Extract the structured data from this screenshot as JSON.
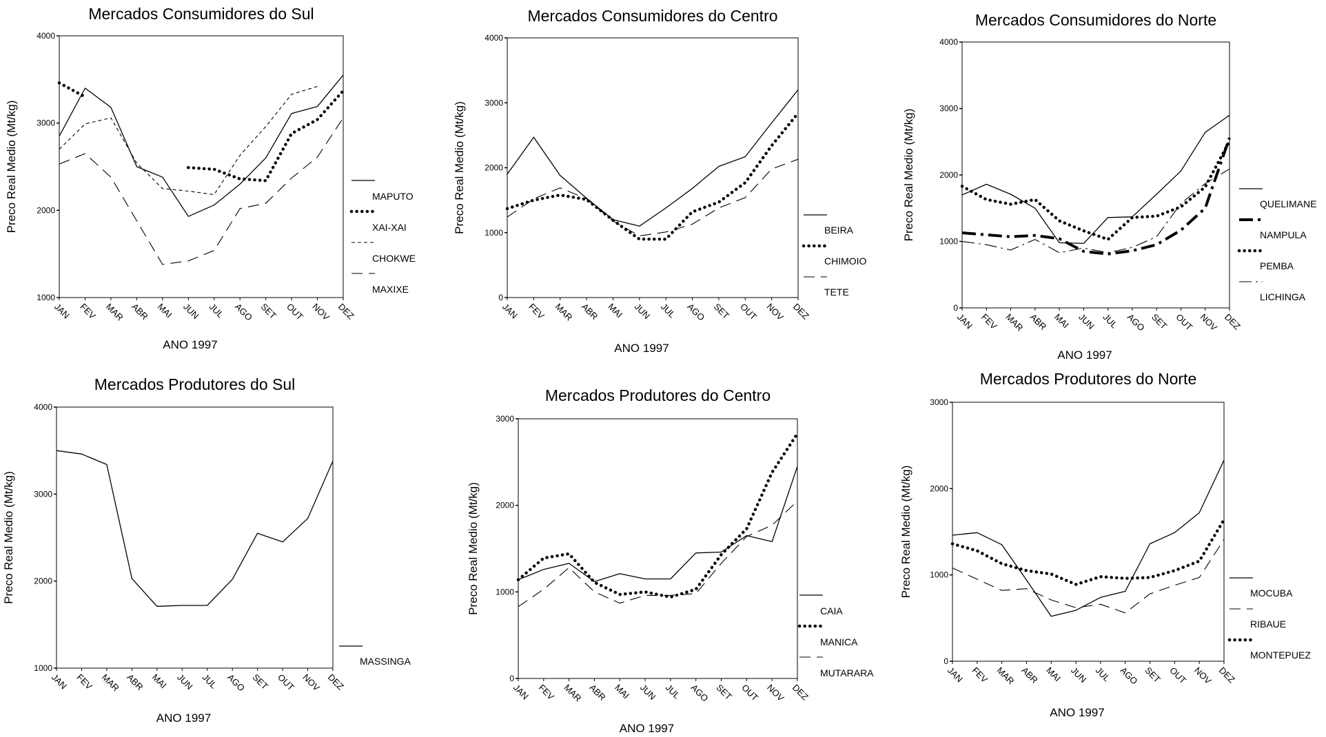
{
  "chart_data": [
    {
      "type": "line",
      "title": "Mercados Consumidores do Sul",
      "xlabel": "ANO 1997",
      "ylabel": "Preco Real Medio (Mt/kg)",
      "categories": [
        "JAN",
        "FEV",
        "MAR",
        "ABR",
        "MAI",
        "JUN",
        "JUL",
        "AGO",
        "SET",
        "OUT",
        "NOV",
        "DEZ"
      ],
      "ylim": [
        1000,
        4000
      ],
      "yticks": [
        "1000",
        "2000",
        "3000",
        "4000"
      ],
      "series": [
        {
          "name": "MAPUTO",
          "style": "solid",
          "values": [
            2850,
            3400,
            3180,
            2500,
            2380,
            1930,
            2060,
            2300,
            2600,
            3110,
            3190,
            3550
          ]
        },
        {
          "name": "XAI-XAI",
          "style": "dotted",
          "values": [
            3460,
            3300,
            null,
            null,
            null,
            2490,
            2470,
            2360,
            2340,
            2880,
            3040,
            3370
          ]
        },
        {
          "name": "CHOKWE",
          "style": "shortdash",
          "values": [
            2700,
            2990,
            3060,
            2540,
            2250,
            2220,
            2180,
            2630,
            2960,
            3330,
            3420,
            null
          ]
        },
        {
          "name": "MAXIXE",
          "style": "longdash",
          "values": [
            2530,
            2650,
            2380,
            1880,
            1380,
            1420,
            1540,
            2020,
            2080,
            2370,
            2610,
            3060
          ]
        }
      ]
    },
    {
      "type": "line",
      "title": "Mercados Consumidores do Centro",
      "xlabel": "ANO 1997",
      "ylabel": "Preco Real Medio (Mt/kg)",
      "categories": [
        "JAN",
        "FEV",
        "MAR",
        "ABR",
        "MAI",
        "JUN",
        "JUL",
        "AGO",
        "SET",
        "OUT",
        "NOV",
        "DEZ"
      ],
      "ylim": [
        0,
        4000
      ],
      "yticks": [
        "0",
        "1000",
        "2000",
        "3000",
        "4000"
      ],
      "series": [
        {
          "name": "BEIRA",
          "style": "solid",
          "values": [
            1900,
            2470,
            1880,
            1530,
            1200,
            1100,
            1380,
            1680,
            2020,
            2170,
            2690,
            3200
          ]
        },
        {
          "name": "CHIMOIO",
          "style": "dotted",
          "values": [
            1370,
            1500,
            1580,
            1510,
            1190,
            900,
            900,
            1320,
            1470,
            1770,
            2340,
            2840
          ]
        },
        {
          "name": "TETE",
          "style": "longdash",
          "values": [
            1240,
            1520,
            1690,
            1520,
            1180,
            950,
            1010,
            1130,
            1380,
            1540,
            1980,
            2130
          ]
        }
      ]
    },
    {
      "type": "line",
      "title": "Mercados Consumidores do Norte",
      "xlabel": "ANO 1997",
      "ylabel": "Preco Real Medio (Mt/kg)",
      "categories": [
        "JAN",
        "FEV",
        "MAR",
        "ABR",
        "MAI",
        "JUN",
        "JUL",
        "AGO",
        "SET",
        "OUT",
        "NOV",
        "DEZ"
      ],
      "ylim": [
        0,
        4000
      ],
      "yticks": [
        "0",
        "1000",
        "2000",
        "3000",
        "4000"
      ],
      "series": [
        {
          "name": "QUELIMANE",
          "style": "solid",
          "values": [
            1700,
            1860,
            1710,
            1500,
            980,
            970,
            1360,
            1370,
            1710,
            2060,
            2640,
            2900
          ]
        },
        {
          "name": "NAMPULA",
          "style": "dashdot",
          "values": [
            1130,
            1100,
            1070,
            1090,
            1040,
            850,
            810,
            860,
            950,
            1170,
            1500,
            2560
          ]
        },
        {
          "name": "PEMBA",
          "style": "dotted",
          "values": [
            1830,
            1630,
            1560,
            1630,
            1310,
            1160,
            1030,
            1360,
            1380,
            1520,
            1820,
            2510
          ]
        },
        {
          "name": "LICHINGA",
          "style": "thindashdot",
          "values": [
            1000,
            950,
            870,
            1030,
            830,
            900,
            830,
            910,
            1070,
            1570,
            1870,
            2090
          ]
        }
      ]
    },
    {
      "type": "line",
      "title": "Mercados Produtores do Sul",
      "xlabel": "ANO 1997",
      "ylabel": "Preco Real Medio (Mt/kg)",
      "categories": [
        "JAN",
        "FEV",
        "MAR",
        "ABR",
        "MAI",
        "JUN",
        "JUL",
        "AGO",
        "SET",
        "OUT",
        "NOV",
        "DEZ"
      ],
      "ylim": [
        1000,
        4000
      ],
      "yticks": [
        "1000",
        "2000",
        "3000",
        "4000"
      ],
      "series": [
        {
          "name": "MASSINGA",
          "style": "solid",
          "values": [
            3500,
            3460,
            3340,
            2030,
            1710,
            1720,
            1720,
            2020,
            2550,
            2450,
            2720,
            3380
          ]
        }
      ]
    },
    {
      "type": "line",
      "title": "Mercados Produtores do Centro",
      "xlabel": "ANO 1997",
      "ylabel": "Preco Real Medio (Mt/kg)",
      "categories": [
        "JAN",
        "FEV",
        "MAR",
        "ABR",
        "MAI",
        "JUN",
        "JUL",
        "AGO",
        "SET",
        "OUT",
        "NOV",
        "DEZ"
      ],
      "ylim": [
        0,
        3000
      ],
      "yticks": [
        "0",
        "1000",
        "2000",
        "3000"
      ],
      "series": [
        {
          "name": "CAIA",
          "style": "solid",
          "values": [
            1140,
            1260,
            1330,
            1120,
            1210,
            1150,
            1150,
            1450,
            1460,
            1650,
            1580,
            2450
          ]
        },
        {
          "name": "MANICA",
          "style": "dotted",
          "values": [
            1140,
            1390,
            1440,
            1110,
            970,
            1000,
            940,
            1030,
            1430,
            1730,
            2380,
            2830
          ]
        },
        {
          "name": "MUTARARA",
          "style": "longdash",
          "values": [
            830,
            1030,
            1280,
            1000,
            870,
            960,
            960,
            980,
            1330,
            1640,
            1770,
            2050
          ]
        }
      ]
    },
    {
      "type": "line",
      "title": "Mercados Produtores do Norte",
      "xlabel": "ANO 1997",
      "ylabel": "Preco Real Medio (Mt/kg)",
      "categories": [
        "JAN",
        "FEV",
        "MAR",
        "ABR",
        "MAI",
        "JUN",
        "JUL",
        "AGO",
        "SET",
        "OUT",
        "NOV",
        "DEZ"
      ],
      "ylim": [
        0,
        3000
      ],
      "yticks": [
        "0",
        "1000",
        "2000",
        "3000"
      ],
      "series": [
        {
          "name": "MOCUBA",
          "style": "solid",
          "values": [
            1460,
            1490,
            1350,
            940,
            520,
            590,
            740,
            810,
            1360,
            1490,
            1720,
            2330
          ]
        },
        {
          "name": "RIBAUE",
          "style": "longdash",
          "values": [
            1080,
            950,
            820,
            840,
            710,
            620,
            660,
            560,
            780,
            880,
            970,
            1410
          ]
        },
        {
          "name": "MONTEPUEZ",
          "style": "dotted",
          "values": [
            1360,
            1280,
            1130,
            1050,
            1010,
            890,
            980,
            960,
            970,
            1050,
            1160,
            1640
          ]
        }
      ]
    }
  ]
}
